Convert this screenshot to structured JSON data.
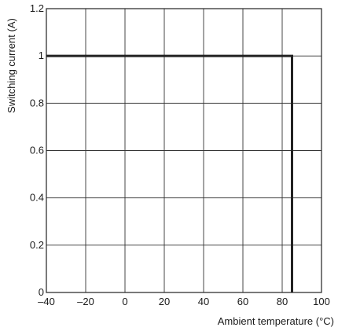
{
  "chart_data": {
    "type": "line",
    "title": "",
    "xlabel": "Ambient temperature (°C)",
    "ylabel": "Switching current (A)",
    "xlim": [
      -40,
      100
    ],
    "ylim": [
      0,
      1.2
    ],
    "x_ticks": [
      -40,
      -20,
      0,
      20,
      40,
      60,
      80,
      100
    ],
    "x_tick_labels": [
      "–40",
      "–20",
      "0",
      "20",
      "40",
      "60",
      "80",
      "100"
    ],
    "y_ticks": [
      0,
      0.2,
      0.4,
      0.6,
      0.8,
      1,
      1.2
    ],
    "y_tick_labels": [
      "0",
      "0.2",
      "0.4",
      "0.6",
      "0.8",
      "1",
      "1.2"
    ],
    "grid": true,
    "series": [
      {
        "x": [
          -40,
          85,
          85
        ],
        "y": [
          1,
          1,
          0
        ]
      }
    ],
    "colors": {
      "line": "#222222",
      "grid": "#333333",
      "frame": "#222222"
    }
  }
}
